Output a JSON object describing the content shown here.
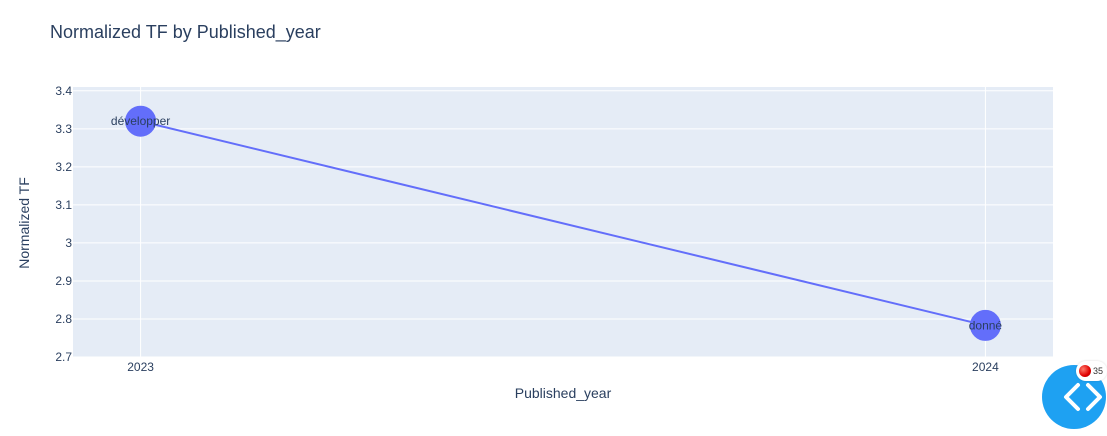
{
  "colors": {
    "plot_bg": "#E5ECF6",
    "grid": "#FFFFFF",
    "line": "#636EFA",
    "marker": "#636EFA",
    "text": "#2A3F5F",
    "widget": "#1EA1F2",
    "badge_dot": "#E00000"
  },
  "chart_data": {
    "type": "line",
    "title": "Normalized TF by Published_year",
    "xlabel": "Published_year",
    "ylabel": "Normalized TF",
    "x": [
      2023,
      2024
    ],
    "y": [
      3.32,
      2.783
    ],
    "point_labels": [
      "développer",
      "donné"
    ],
    "x_ticks": [
      "2023",
      "2024"
    ],
    "y_ticks": [
      2.7,
      2.8,
      2.9,
      3,
      3.1,
      3.2,
      3.3,
      3.4
    ],
    "y_tick_labels": [
      "2.7",
      "2.8",
      "2.9",
      "3",
      "3.1",
      "3.2",
      "3.3",
      "3.4"
    ],
    "ylim": [
      2.7,
      3.41
    ],
    "xlim": [
      2022.92,
      2024.08
    ],
    "grid": true,
    "markers": true
  },
  "widget": {
    "icon": "code-chevrons-icon",
    "badge_icon": "red-dot-icon",
    "badge_count": "35"
  }
}
